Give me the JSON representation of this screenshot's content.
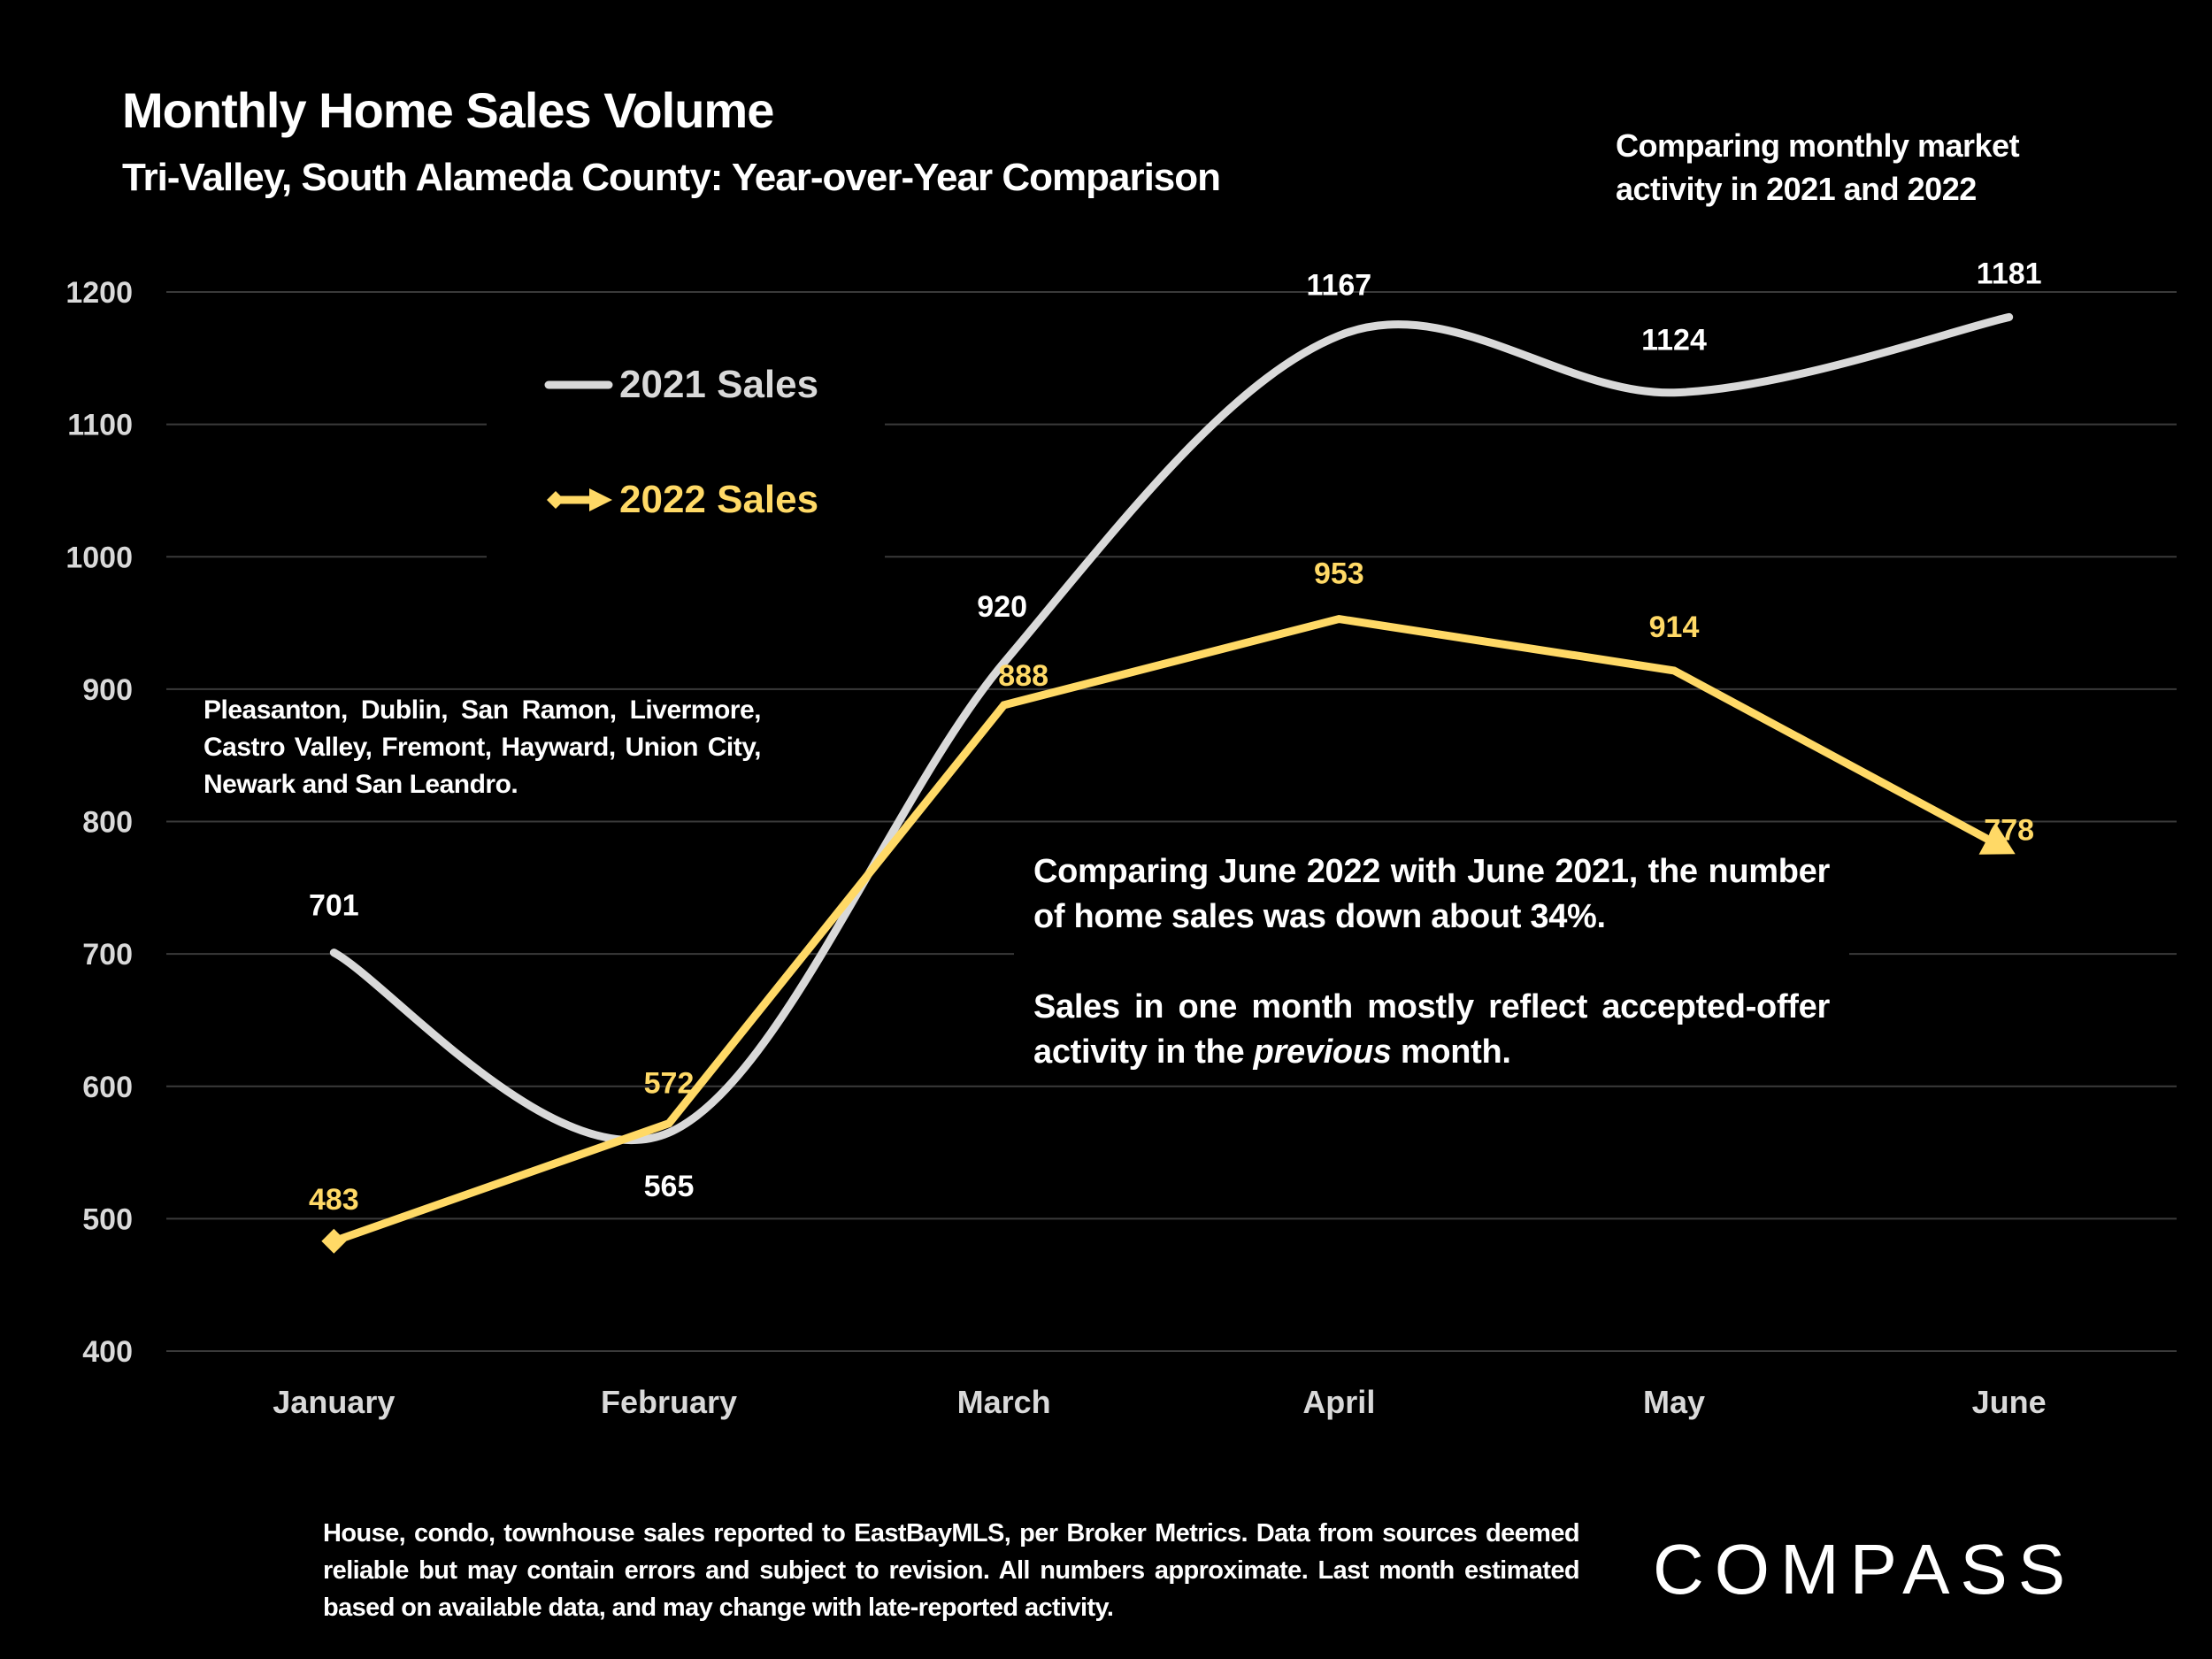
{
  "header": {
    "title": "Monthly Home Sales Volume",
    "subtitle": "Tri-Valley, South Alameda County: Year-over-Year Comparison",
    "top_note": "Comparing monthly market activity in 2021 and 2022"
  },
  "notes": {
    "cities": "Pleasanton, Dublin, San Ramon, Livermore, Castro Valley, Fremont, Hayward, Union City, Newark and San Leandro.",
    "callout_1": "Comparing June 2022 with June 2021, the number of home sales was down about 34%.",
    "callout_2_pre": "Sales in one month mostly reflect accepted-offer activity in the ",
    "callout_2_em": "previous",
    "callout_2_post": " month.",
    "footer": "House, condo, townhouse sales reported to EastBayMLS, per Broker Metrics. Data from sources deemed reliable but may contain errors and subject to revision. All numbers approximate. Last month estimated based on available data, and may change with late-reported activity."
  },
  "brand": {
    "logo": "COMPASS"
  },
  "colors": {
    "series_2021": "#d9d9d9",
    "series_2022": "#ffd966",
    "grid": "#3a3a3a",
    "background": "#000000"
  },
  "chart_data": {
    "type": "line",
    "title": "Monthly Home Sales Volume",
    "subtitle": "Tri-Valley, South Alameda County: Year-over-Year Comparison",
    "xlabel": "",
    "ylabel": "",
    "categories": [
      "January",
      "February",
      "March",
      "April",
      "May",
      "June"
    ],
    "ylim": [
      400,
      1200
    ],
    "yticks": [
      400,
      500,
      600,
      700,
      800,
      900,
      1000,
      1100,
      1200
    ],
    "grid": true,
    "legend_position": "top-left",
    "series": [
      {
        "name": "2021 Sales",
        "values": [
          701,
          565,
          920,
          1167,
          1124,
          1181
        ],
        "smooth": true,
        "marker": "none"
      },
      {
        "name": "2022 Sales",
        "values": [
          483,
          572,
          888,
          953,
          914,
          778
        ],
        "smooth": false,
        "marker": "diamond-start-arrow-end"
      }
    ]
  }
}
